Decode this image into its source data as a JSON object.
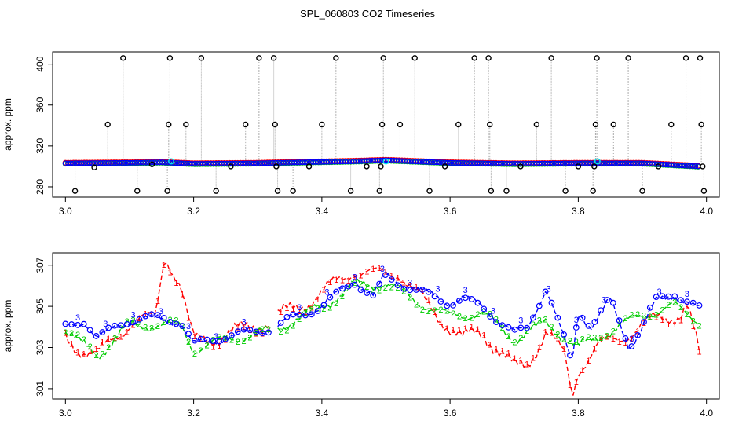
{
  "figure": {
    "title": "SPL_060803  CO2 Timeseries"
  },
  "chart_data": [
    {
      "type": "scatter",
      "panel": "top",
      "ylabel": "approx. ppm",
      "xlabel": "",
      "xlim": [
        2.98,
        4.02
      ],
      "ylim": [
        270,
        412
      ],
      "xticks": [
        3.0,
        3.2,
        3.4,
        3.6,
        3.8,
        4.0
      ],
      "xtick_labels": [
        "3.0",
        "3.2",
        "3.4",
        "3.6",
        "3.8",
        "4.0"
      ],
      "yticks": [
        280,
        320,
        360,
        400
      ],
      "ytick_labels": [
        "280",
        "320",
        "360",
        "400"
      ],
      "grid": false,
      "legend": "none",
      "colors": {
        "series1": "#ff0000",
        "series2": "#00cc00",
        "series3": "#0000ff",
        "outlier": "#000000",
        "highlight": "#00e5ee",
        "spike_line": "#aaaaaa"
      },
      "baseline_knots": {
        "x": [
          3.0,
          3.1,
          3.15,
          3.2,
          3.3,
          3.33,
          3.45,
          3.5,
          3.6,
          3.7,
          3.8,
          3.9,
          3.99
        ],
        "y": [
          303,
          303.5,
          304,
          302.5,
          303,
          303.5,
          305,
          306,
          303.5,
          302.5,
          303,
          303,
          300
        ]
      },
      "outlier_points": [
        {
          "x": 3.015,
          "y": 276
        },
        {
          "x": 3.045,
          "y": 299
        },
        {
          "x": 3.066,
          "y": 341
        },
        {
          "x": 3.09,
          "y": 406
        },
        {
          "x": 3.112,
          "y": 276
        },
        {
          "x": 3.135,
          "y": 302
        },
        {
          "x": 3.159,
          "y": 276
        },
        {
          "x": 3.161,
          "y": 341
        },
        {
          "x": 3.163,
          "y": 406
        },
        {
          "x": 3.188,
          "y": 341
        },
        {
          "x": 3.212,
          "y": 406
        },
        {
          "x": 3.235,
          "y": 276
        },
        {
          "x": 3.258,
          "y": 300
        },
        {
          "x": 3.281,
          "y": 341
        },
        {
          "x": 3.302,
          "y": 406
        },
        {
          "x": 3.325,
          "y": 406
        },
        {
          "x": 3.327,
          "y": 341
        },
        {
          "x": 3.329,
          "y": 300
        },
        {
          "x": 3.331,
          "y": 276
        },
        {
          "x": 3.355,
          "y": 276
        },
        {
          "x": 3.38,
          "y": 300
        },
        {
          "x": 3.4,
          "y": 341
        },
        {
          "x": 3.422,
          "y": 406
        },
        {
          "x": 3.445,
          "y": 276
        },
        {
          "x": 3.47,
          "y": 300
        },
        {
          "x": 3.49,
          "y": 276
        },
        {
          "x": 3.492,
          "y": 300
        },
        {
          "x": 3.494,
          "y": 341
        },
        {
          "x": 3.496,
          "y": 406
        },
        {
          "x": 3.522,
          "y": 341
        },
        {
          "x": 3.545,
          "y": 406
        },
        {
          "x": 3.568,
          "y": 276
        },
        {
          "x": 3.592,
          "y": 300
        },
        {
          "x": 3.613,
          "y": 341
        },
        {
          "x": 3.638,
          "y": 406
        },
        {
          "x": 3.66,
          "y": 406
        },
        {
          "x": 3.662,
          "y": 341
        },
        {
          "x": 3.664,
          "y": 276
        },
        {
          "x": 3.688,
          "y": 276
        },
        {
          "x": 3.71,
          "y": 300
        },
        {
          "x": 3.735,
          "y": 341
        },
        {
          "x": 3.758,
          "y": 406
        },
        {
          "x": 3.78,
          "y": 276
        },
        {
          "x": 3.8,
          "y": 300
        },
        {
          "x": 3.823,
          "y": 276
        },
        {
          "x": 3.825,
          "y": 300
        },
        {
          "x": 3.827,
          "y": 341
        },
        {
          "x": 3.829,
          "y": 406
        },
        {
          "x": 3.855,
          "y": 341
        },
        {
          "x": 3.878,
          "y": 406
        },
        {
          "x": 3.9,
          "y": 276
        },
        {
          "x": 3.925,
          "y": 300
        },
        {
          "x": 3.945,
          "y": 341
        },
        {
          "x": 3.968,
          "y": 406
        },
        {
          "x": 3.99,
          "y": 406
        },
        {
          "x": 3.992,
          "y": 341
        },
        {
          "x": 3.994,
          "y": 300
        },
        {
          "x": 3.996,
          "y": 276
        }
      ],
      "highlight_points": [
        {
          "x": 3.165,
          "y": 305
        },
        {
          "x": 3.5,
          "y": 305
        },
        {
          "x": 3.83,
          "y": 305
        }
      ]
    },
    {
      "type": "line",
      "panel": "bottom",
      "ylabel": "approx. ppm",
      "xlabel": "",
      "xlim": [
        2.98,
        4.02
      ],
      "ylim": [
        300.5,
        307.6
      ],
      "xticks": [
        3.0,
        3.2,
        3.4,
        3.6,
        3.8,
        4.0
      ],
      "xtick_labels": [
        "3.0",
        "3.2",
        "3.4",
        "3.6",
        "3.8",
        "4.0"
      ],
      "yticks": [
        301,
        303,
        305,
        307
      ],
      "ytick_labels": [
        "301",
        "303",
        "305",
        "307"
      ],
      "grid": false,
      "legend": "none",
      "gap": [
        3.32,
        3.33
      ],
      "series": [
        {
          "marker": "1",
          "color": "#ff0000",
          "knots_x": [
            3.0,
            3.02,
            3.05,
            3.08,
            3.1,
            3.14,
            3.155,
            3.18,
            3.19,
            3.2,
            3.25,
            3.32,
            3.35,
            3.4,
            3.45,
            3.48,
            3.52,
            3.55,
            3.6,
            3.62,
            3.65,
            3.7,
            3.72,
            3.75,
            3.78,
            3.79,
            3.8,
            3.83,
            3.9,
            3.93,
            3.96,
            3.97,
            3.99
          ],
          "knots_y": [
            303.5,
            303.0,
            302.6,
            303.6,
            304.2,
            304.4,
            307.6,
            306.0,
            304.5,
            303.3,
            303.6,
            304.3,
            304.8,
            305.6,
            306.8,
            306.5,
            306.7,
            305.5,
            304.0,
            303.4,
            303.8,
            302.0,
            302.2,
            303.8,
            302.5,
            300.6,
            302.0,
            303.0,
            304.0,
            304.5,
            304.6,
            305.0,
            302.5
          ]
        },
        {
          "marker": "2",
          "color": "#00cc00",
          "knots_x": [
            3.0,
            3.05,
            3.1,
            3.18,
            3.2,
            3.25,
            3.32,
            3.35,
            3.4,
            3.45,
            3.5,
            3.55,
            3.6,
            3.65,
            3.7,
            3.75,
            3.8,
            3.85,
            3.9,
            3.95,
            3.99
          ],
          "knots_y": [
            303.8,
            302.6,
            304.1,
            304.1,
            302.9,
            303.4,
            303.8,
            304.2,
            305.0,
            306.0,
            306.1,
            305.2,
            304.5,
            304.7,
            303.4,
            304.2,
            303.0,
            303.8,
            304.6,
            305.0,
            304.3
          ]
        },
        {
          "marker": "3",
          "color": "#0000ff",
          "knots_x": [
            3.0,
            3.03,
            3.05,
            3.08,
            3.1,
            3.15,
            3.18,
            3.2,
            3.25,
            3.32,
            3.33,
            3.35,
            3.4,
            3.45,
            3.48,
            3.5,
            3.52,
            3.55,
            3.6,
            3.62,
            3.65,
            3.7,
            3.72,
            3.75,
            3.78,
            3.79,
            3.8,
            3.82,
            3.85,
            3.88,
            3.9,
            3.92,
            3.95,
            3.99
          ],
          "knots_y": [
            304.0,
            304.3,
            303.4,
            304.0,
            304.3,
            304.4,
            304.2,
            303.1,
            303.5,
            303.9,
            304.0,
            304.4,
            305.0,
            306.3,
            305.5,
            306.5,
            306.2,
            305.8,
            305.2,
            305.4,
            305.0,
            303.7,
            303.9,
            305.9,
            303.2,
            302.2,
            304.8,
            304.0,
            305.3,
            303.0,
            304.0,
            305.2,
            305.6,
            304.8
          ]
        }
      ]
    }
  ]
}
